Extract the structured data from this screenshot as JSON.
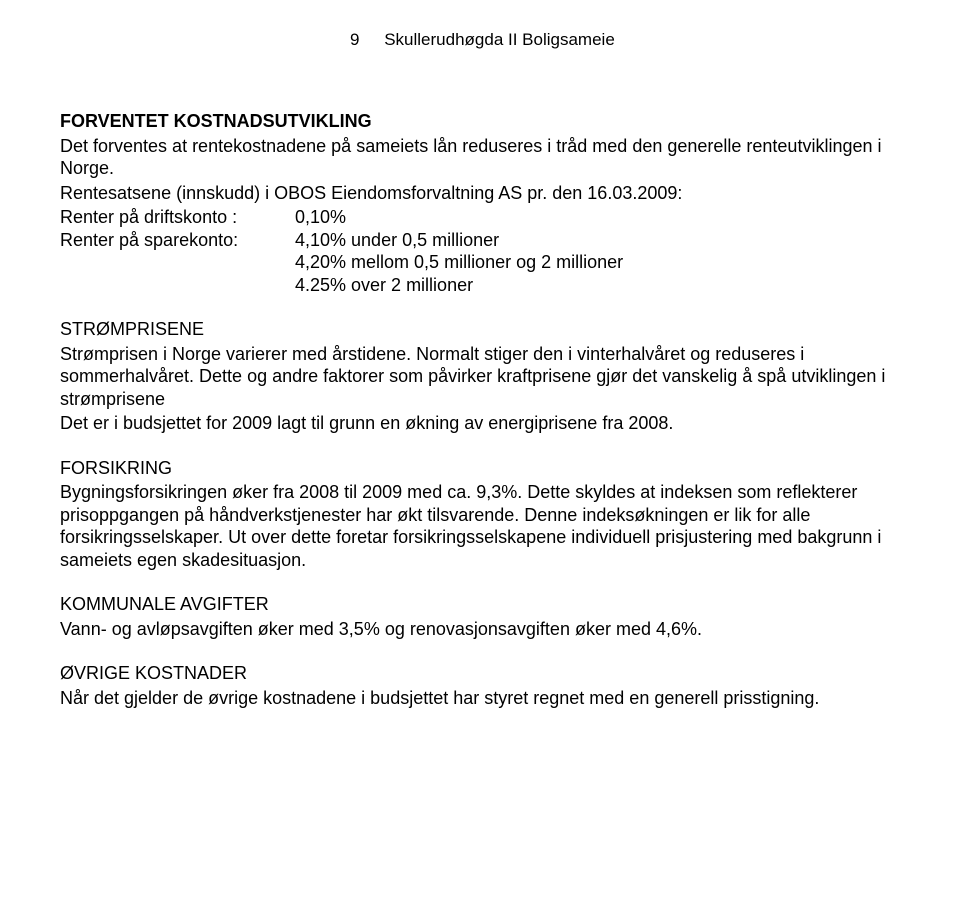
{
  "header": {
    "page_number": "9",
    "doc_title": "Skullerudhøgda II Boligsameie"
  },
  "section_forventet": {
    "title": "FORVENTET KOSTNADSUTVIKLING",
    "intro": "Det forventes at rentekostnadene på sameiets lån reduseres i tråd med den generelle renteutviklingen i Norge.",
    "rentesats_line": "Rentesatsene (innskudd) i OBOS Eiendomsforvaltning AS pr. den 16.03.2009:",
    "drift_label": "Renter på driftskonto :",
    "drift_value": "0,10%",
    "spare_label": "Renter på sparekonto:",
    "spare_value1": "4,10% under 0,5 millioner",
    "spare_value2": "4,20% mellom 0,5 millioner og 2 millioner",
    "spare_value3": "4.25% over 2 millioner"
  },
  "section_strom": {
    "title": "STRØMPRISENE",
    "body": "Strømprisen i Norge varierer med årstidene. Normalt stiger den i vinterhalvåret og reduseres i sommerhalvåret. Dette og andre faktorer som påvirker kraftprisene gjør det vanskelig å spå utviklingen i strømprisene",
    "body2": "Det er i budsjettet for 2009 lagt til grunn en økning av energiprisene fra 2008."
  },
  "section_forsikring": {
    "title": "FORSIKRING",
    "body": "Bygningsforsikringen øker fra 2008 til 2009 med ca. 9,3%. Dette skyldes at indeksen som reflekterer prisoppgangen på håndverkstjenester har økt tilsvarende. Denne indeksøkningen er lik for alle forsikringsselskaper. Ut over dette foretar forsikringsselskapene individuell prisjustering med bakgrunn i sameiets egen skadesituasjon."
  },
  "section_kommunale": {
    "title": "KOMMUNALE AVGIFTER",
    "body": "Vann- og avløpsavgiften øker med 3,5% og renovasjonsavgiften øker med 4,6%."
  },
  "section_ovrige": {
    "title": "ØVRIGE KOSTNADER",
    "body": "Når det gjelder de øvrige kostnadene i budsjettet har styret regnet med en generell prisstigning."
  }
}
